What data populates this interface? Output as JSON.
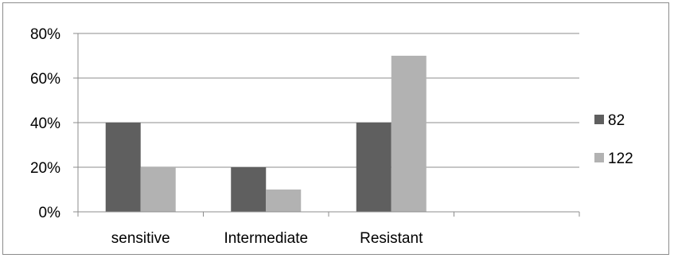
{
  "chart_data": {
    "type": "bar",
    "categories": [
      "sensitive",
      "Intermediate",
      "Resistant",
      ""
    ],
    "series": [
      {
        "name": "82",
        "values": [
          0.4,
          0.2,
          0.4,
          null
        ],
        "color": "#5f5f5f"
      },
      {
        "name": "122",
        "values": [
          0.2,
          0.1,
          0.7,
          null
        ],
        "color": "#b2b2b2"
      }
    ],
    "y_ticks": [
      0,
      0.2,
      0.4,
      0.6,
      0.8
    ],
    "y_tick_labels": [
      "0%",
      "20%",
      "40%",
      "60%",
      "80%"
    ],
    "ylim": [
      0,
      0.8
    ],
    "grid": true,
    "legend_position": "right"
  }
}
